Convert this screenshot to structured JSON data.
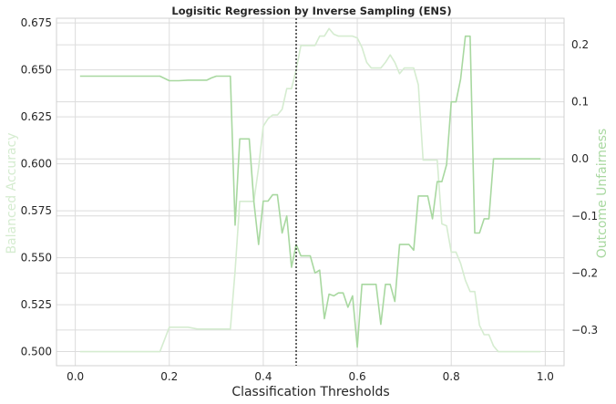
{
  "chart_data": {
    "type": "line",
    "title": "Logisitic Regression by Inverse Sampling (ENS)",
    "xlabel": "Classification Thresholds",
    "ylabel_left": "Balanced Accuracy",
    "ylabel_right": "Outcome Unfairness",
    "xlim": [
      -0.04,
      1.04
    ],
    "ylim_left": [
      0.4925,
      0.6775
    ],
    "ylim_right": [
      -0.3625,
      0.2465
    ],
    "x_ticks": [
      "0.0",
      "0.2",
      "0.4",
      "0.6",
      "0.8",
      "1.0"
    ],
    "x_tick_values": [
      0.0,
      0.2,
      0.4,
      0.6,
      0.8,
      1.0
    ],
    "y_left_ticks": [
      "0.500",
      "0.525",
      "0.550",
      "0.575",
      "0.600",
      "0.625",
      "0.650",
      "0.675"
    ],
    "y_left_tick_values": [
      0.5,
      0.525,
      0.55,
      0.575,
      0.6,
      0.625,
      0.65,
      0.675
    ],
    "y_right_ticks": [
      "−0.3",
      "−0.2",
      "−0.1",
      "0.0",
      "0.1",
      "0.2"
    ],
    "y_right_tick_values": [
      -0.3,
      -0.2,
      -0.1,
      0.0,
      0.1,
      0.2
    ],
    "grid": true,
    "vline_x": 0.47,
    "colors": {
      "balanced_accuracy": "#d5ecd0",
      "outcome_unfairness": "#a8d8a0",
      "vline": "#333333",
      "grid": "#dcdcdc",
      "spine": "#d0d0d0"
    },
    "series": [
      {
        "axis": "left",
        "x": [
          0.01,
          0.05,
          0.1,
          0.15,
          0.17,
          0.18,
          0.2,
          0.22,
          0.24,
          0.26,
          0.28,
          0.29,
          0.3,
          0.32,
          0.33,
          0.34,
          0.35,
          0.36,
          0.37,
          0.38,
          0.39,
          0.4,
          0.41,
          0.42,
          0.43,
          0.44,
          0.45,
          0.46,
          0.47,
          0.48,
          0.49,
          0.5,
          0.51,
          0.52,
          0.53,
          0.54,
          0.55,
          0.56,
          0.57,
          0.58,
          0.59,
          0.6,
          0.61,
          0.62,
          0.63,
          0.64,
          0.65,
          0.66,
          0.67,
          0.68,
          0.69,
          0.7,
          0.71,
          0.72,
          0.73,
          0.74,
          0.75,
          0.76,
          0.77,
          0.78,
          0.79,
          0.8,
          0.81,
          0.82,
          0.83,
          0.84,
          0.85,
          0.86,
          0.87,
          0.88,
          0.89,
          0.9,
          0.95,
          0.99
        ],
        "values": [
          0.5,
          0.5,
          0.5,
          0.5,
          0.5,
          0.5,
          0.513,
          0.513,
          0.513,
          0.512,
          0.512,
          0.512,
          0.512,
          0.512,
          0.512,
          0.543,
          0.58,
          0.58,
          0.58,
          0.58,
          0.598,
          0.62,
          0.624,
          0.626,
          0.626,
          0.629,
          0.64,
          0.64,
          0.65,
          0.663,
          0.663,
          0.663,
          0.663,
          0.668,
          0.668,
          0.672,
          0.669,
          0.668,
          0.668,
          0.668,
          0.668,
          0.667,
          0.662,
          0.654,
          0.651,
          0.651,
          0.651,
          0.654,
          0.658,
          0.654,
          0.648,
          0.651,
          0.651,
          0.651,
          0.642,
          0.602,
          0.602,
          0.602,
          0.602,
          0.568,
          0.567,
          0.553,
          0.553,
          0.547,
          0.538,
          0.532,
          0.532,
          0.514,
          0.509,
          0.509,
          0.503,
          0.5,
          0.5,
          0.5
        ]
      },
      {
        "axis": "right",
        "x": [
          0.01,
          0.05,
          0.1,
          0.15,
          0.17,
          0.18,
          0.2,
          0.22,
          0.24,
          0.26,
          0.28,
          0.29,
          0.3,
          0.32,
          0.33,
          0.34,
          0.35,
          0.36,
          0.37,
          0.38,
          0.39,
          0.4,
          0.41,
          0.42,
          0.43,
          0.44,
          0.45,
          0.46,
          0.47,
          0.48,
          0.49,
          0.5,
          0.51,
          0.52,
          0.53,
          0.54,
          0.55,
          0.56,
          0.57,
          0.58,
          0.59,
          0.6,
          0.61,
          0.62,
          0.63,
          0.64,
          0.65,
          0.66,
          0.67,
          0.68,
          0.69,
          0.7,
          0.71,
          0.72,
          0.73,
          0.74,
          0.75,
          0.76,
          0.77,
          0.78,
          0.79,
          0.8,
          0.81,
          0.82,
          0.83,
          0.84,
          0.85,
          0.86,
          0.87,
          0.88,
          0.89,
          0.9,
          0.95,
          0.99
        ],
        "values": [
          0.145,
          0.145,
          0.145,
          0.145,
          0.145,
          0.145,
          0.137,
          0.137,
          0.138,
          0.138,
          0.138,
          0.142,
          0.145,
          0.145,
          0.145,
          -0.116,
          0.035,
          0.035,
          0.035,
          -0.075,
          -0.15,
          -0.074,
          -0.074,
          -0.063,
          -0.063,
          -0.13,
          -0.1,
          -0.19,
          -0.15,
          -0.17,
          -0.17,
          -0.17,
          -0.2,
          -0.195,
          -0.28,
          -0.237,
          -0.24,
          -0.235,
          -0.235,
          -0.26,
          -0.24,
          -0.33,
          -0.22,
          -0.22,
          -0.22,
          -0.22,
          -0.29,
          -0.22,
          -0.22,
          -0.25,
          -0.15,
          -0.15,
          -0.15,
          -0.16,
          -0.065,
          -0.065,
          -0.065,
          -0.105,
          -0.04,
          -0.04,
          -0.01,
          0.1,
          0.1,
          0.14,
          0.215,
          0.215,
          -0.13,
          -0.13,
          -0.105,
          -0.105,
          0.0,
          0.0,
          0.0,
          0.0
        ]
      }
    ]
  }
}
